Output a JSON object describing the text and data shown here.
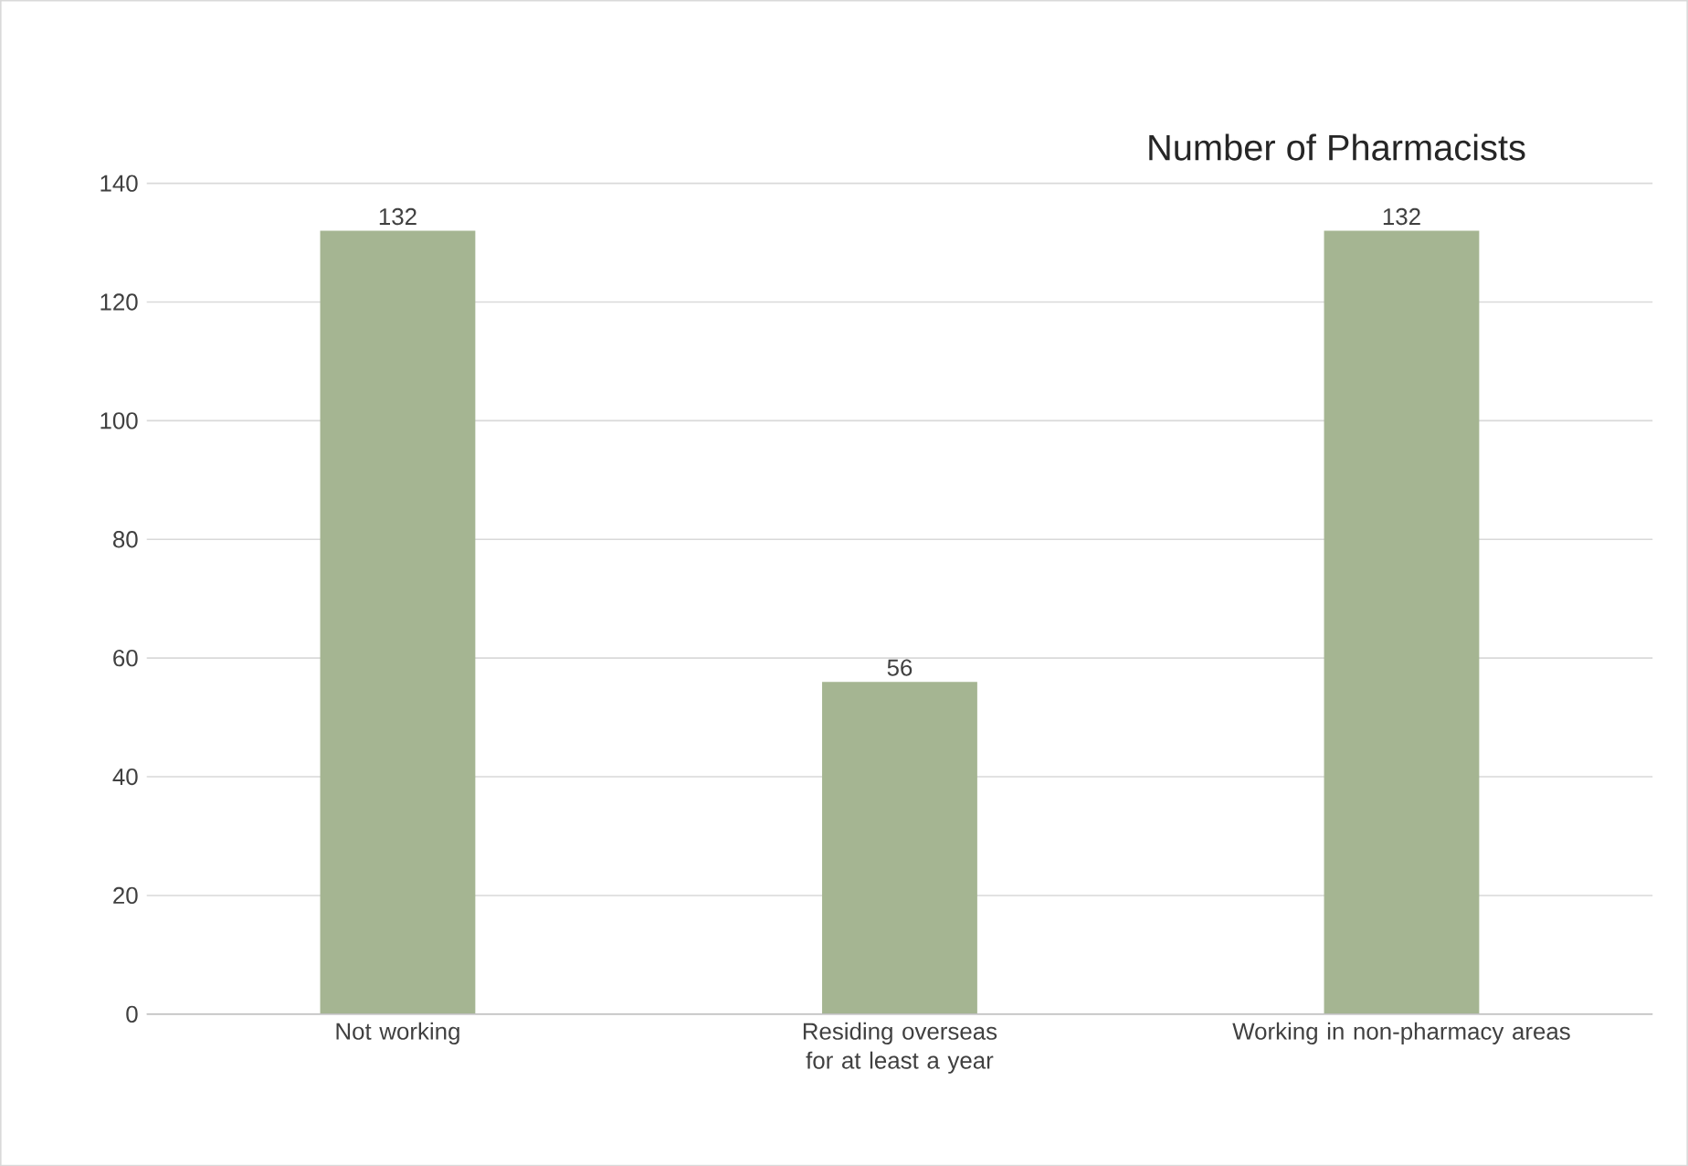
{
  "chart_data": {
    "type": "bar",
    "title": "Number of Pharmacists",
    "categories": [
      "Not working",
      "Residing overseas for at least a year",
      "Working in non-pharmacy areas"
    ],
    "values": [
      132,
      56,
      132
    ],
    "color": "#a5b592",
    "ylim": [
      0,
      140
    ],
    "yticks": [
      0,
      20,
      40,
      60,
      80,
      100,
      120,
      140
    ],
    "grid": "y",
    "data_labels": true
  }
}
